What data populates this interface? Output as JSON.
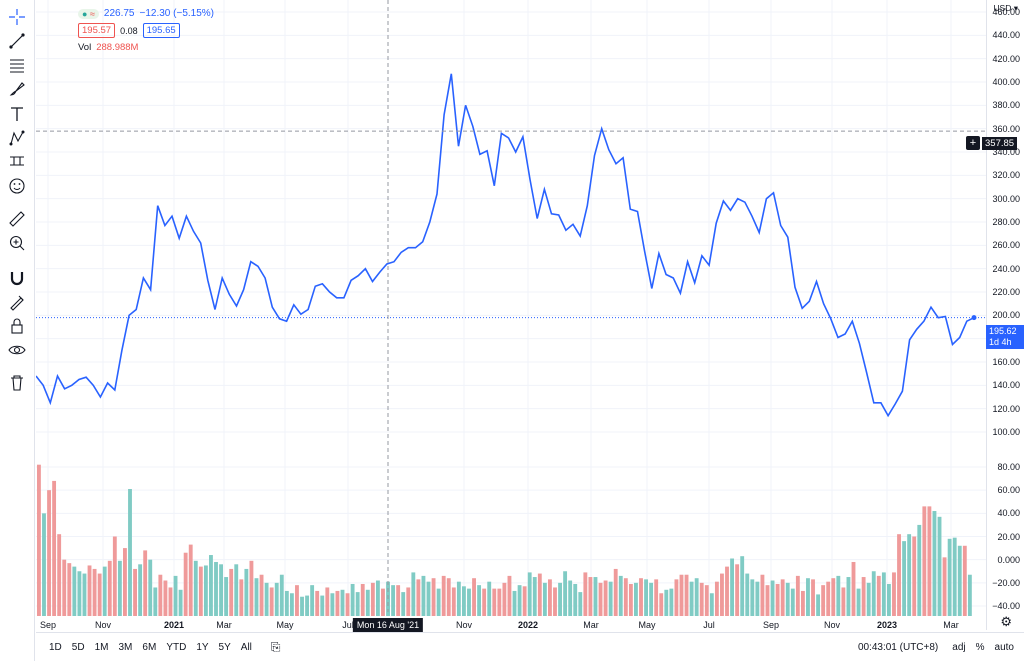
{
  "legend": {
    "price": "226.75",
    "change": "−12.30 (−5.15%)",
    "bid": "195.57",
    "spread": "0.08",
    "ask": "195.65",
    "vol_label": "Vol",
    "vol_value": "288.988M",
    "colors": {
      "up": "#26a69a",
      "down": "#ef5350",
      "accent": "#2962ff"
    }
  },
  "toolbar": {
    "icons": [
      "crosshair-icon",
      "trend-line-icon",
      "fib-retracement-icon",
      "brush-icon",
      "text-icon",
      "pattern-icon",
      "prediction-icon",
      "emoji-icon",
      "ruler-icon",
      "zoom-icon",
      "magnet-icon",
      "lock-drawings-icon",
      "lock-icon",
      "eye-icon",
      "trash-icon"
    ]
  },
  "price_axis": {
    "currency": "USD",
    "ticks": [
      "460.00",
      "440.00",
      "420.00",
      "400.00",
      "380.00",
      "360.00",
      "340.00",
      "320.00",
      "300.00",
      "280.00",
      "260.00",
      "240.00",
      "220.00",
      "200.00",
      "180.00",
      "160.00",
      "140.00",
      "120.00",
      "100.00"
    ],
    "volume_ticks": [
      "80.00",
      "60.00",
      "40.00",
      "20.00",
      "0.000",
      "−20.00",
      "−40.00"
    ],
    "crosshair_value": "357.85",
    "last_price": "195.62",
    "last_interval": "1d 4h"
  },
  "time_axis": {
    "ticks": [
      {
        "label": "Sep",
        "bold": false
      },
      {
        "label": "Nov",
        "bold": false
      },
      {
        "label": "2021",
        "bold": true
      },
      {
        "label": "Mar",
        "bold": false
      },
      {
        "label": "May",
        "bold": false
      },
      {
        "label": "Jul",
        "bold": false
      },
      {
        "label": "Nov",
        "bold": false
      },
      {
        "label": "2022",
        "bold": true
      },
      {
        "label": "Mar",
        "bold": false
      },
      {
        "label": "May",
        "bold": false
      },
      {
        "label": "Jul",
        "bold": false
      },
      {
        "label": "Sep",
        "bold": false
      },
      {
        "label": "Nov",
        "bold": false
      },
      {
        "label": "2023",
        "bold": true
      },
      {
        "label": "Mar",
        "bold": false
      }
    ],
    "crosshair_date": "Mon 16 Aug '21"
  },
  "bottom_bar": {
    "ranges": [
      "1D",
      "5D",
      "1M",
      "3M",
      "6M",
      "YTD",
      "1Y",
      "5Y",
      "All"
    ],
    "time": "00:43:01 (UTC+8)",
    "adj": "adj",
    "percent": "%",
    "auto": "auto"
  },
  "chart_data": {
    "type": "line",
    "series": [
      {
        "values": [
          148,
          140,
          125,
          148,
          137,
          140,
          145,
          147,
          140,
          130,
          142,
          136,
          170,
          200,
          205,
          232,
          222,
          294,
          277,
          285,
          266,
          285,
          272,
          262,
          230,
          205,
          232,
          218,
          208,
          222,
          246,
          242,
          232,
          207,
          197,
          195,
          209,
          201,
          205,
          225,
          227,
          220,
          215,
          215,
          230,
          234,
          240,
          229,
          237,
          244,
          246,
          254,
          258,
          258,
          263,
          280,
          304,
          372,
          407,
          345,
          380,
          362,
          338,
          341,
          311,
          356,
          352,
          340,
          353,
          316,
          283,
          308,
          287,
          286,
          273,
          278,
          268,
          294,
          337,
          360,
          342,
          330,
          335,
          291,
          289,
          255,
          223,
          253,
          235,
          232,
          219,
          246,
          228,
          251,
          243,
          279,
          298,
          290,
          300,
          297,
          285,
          271,
          300,
          305,
          277,
          267,
          224,
          206,
          212,
          229,
          210,
          197,
          181,
          184,
          195,
          176,
          151,
          125,
          125,
          114,
          124,
          135,
          179,
          188,
          195,
          207,
          198,
          199,
          175,
          181,
          195,
          198
        ]
      }
    ],
    "volume": {
      "values": [
        82,
        40,
        60,
        68,
        22,
        0,
        -3,
        -6,
        -10,
        -12,
        -5,
        -8,
        -12,
        -6,
        -1,
        20,
        -1,
        10,
        61,
        -8,
        -4,
        8,
        0,
        -24,
        -13,
        -18,
        -24,
        -14,
        -26,
        6,
        13,
        -1,
        -6,
        -5,
        4,
        -2,
        -4,
        -15,
        -8,
        -4,
        -17,
        -8,
        -1,
        -16,
        -13,
        -20,
        -24,
        -20,
        -13,
        -27,
        -29,
        -22,
        -32,
        -31,
        -22,
        -27,
        -31,
        -24,
        -29,
        -27,
        -26,
        -29,
        -21,
        -28,
        -21,
        -26,
        -20,
        -18,
        -25,
        -19,
        -22,
        -22,
        -28,
        -24,
        -11,
        -17,
        -14,
        -19,
        -16,
        -25,
        -14,
        -16,
        -24,
        -19,
        -23,
        -25,
        -16,
        -22,
        -25,
        -19,
        -25,
        -25,
        -20,
        -14,
        -27,
        -22,
        -23,
        -11,
        -15,
        -12,
        -20,
        -17,
        -24,
        -20,
        -10,
        -18,
        -21,
        -28,
        -11,
        -15,
        -15,
        -20,
        -18,
        -19,
        -8,
        -14,
        -16,
        -21,
        -20,
        -16,
        -17,
        -20,
        -17,
        -29,
        -26,
        -25,
        -17,
        -13,
        -13,
        -19,
        -16,
        -20,
        -22,
        -29,
        -19,
        -12,
        -6,
        1,
        -4,
        3,
        -12,
        -17,
        -19,
        -13,
        -22,
        -18,
        -21,
        -17,
        -20,
        -25,
        -14,
        -27,
        -16,
        -17,
        -30,
        -22,
        -19,
        -16,
        -14,
        -24,
        -15,
        -2,
        -25,
        -15,
        -20,
        -10,
        -14,
        -11,
        -21,
        -11,
        22,
        16,
        22,
        20,
        30,
        46,
        46,
        42,
        37,
        2,
        18,
        19,
        12,
        12,
        -13
      ]
    },
    "ylim": [
      90,
      470
    ],
    "volume_ylim": [
      -45,
      85
    ],
    "grid": true
  }
}
